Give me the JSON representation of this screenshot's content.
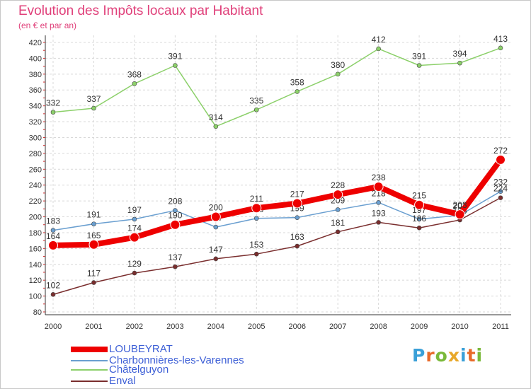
{
  "header": {
    "title": "Evolution des Impôts locaux par Habitant",
    "subtitle": "(en € et par an)"
  },
  "logo": {
    "text": "Proxiti",
    "letters": [
      {
        "ch": "P",
        "color": "#3aa0d8"
      },
      {
        "ch": "r",
        "color": "#e86a2a"
      },
      {
        "ch": "o",
        "color": "#7ab93a"
      },
      {
        "ch": "x",
        "color": "#e8a82a"
      },
      {
        "ch": "i",
        "color": "#3aa0d8"
      },
      {
        "ch": "t",
        "color": "#e86a2a"
      },
      {
        "ch": "i",
        "color": "#7ab93a"
      }
    ]
  },
  "chart_data": {
    "type": "line",
    "title": "Evolution des Impôts locaux par Habitant",
    "subtitle": "(en € et par an)",
    "xlabel": "",
    "ylabel": "",
    "ylim": [
      80,
      420
    ],
    "grid": true,
    "y_ticks": [
      80,
      100,
      120,
      140,
      160,
      180,
      200,
      220,
      240,
      260,
      280,
      300,
      320,
      340,
      360,
      380,
      400,
      420
    ],
    "categories": [
      "2000",
      "2001",
      "2002",
      "2003",
      "2004",
      "2005",
      "2006",
      "2007",
      "2008",
      "2009",
      "2010",
      "2011"
    ],
    "legend_position": "bottom-left",
    "series": [
      {
        "name": "LOUBEYRAT",
        "color": "#ee0000",
        "bold": true,
        "values": [
          164,
          165,
          174,
          190,
          200,
          211,
          217,
          228,
          238,
          215,
          203,
          272
        ],
        "labels": [
          "164",
          "165",
          "174",
          "190",
          "200",
          "211",
          "217",
          "228",
          "238",
          "215",
          "203",
          "272"
        ]
      },
      {
        "name": "Charbonnières-les-Varennes",
        "color": "#6a9fd0",
        "bold": false,
        "values": [
          183,
          191,
          197,
          208,
          187,
          198,
          199,
          209,
          218,
          197,
          202,
          232
        ],
        "labels": [
          "183",
          "191",
          "197",
          "208",
          "187",
          "198",
          "199",
          "209",
          "218",
          "197",
          "202",
          "232"
        ]
      },
      {
        "name": "Châtelguyon",
        "color": "#8cd06a",
        "bold": false,
        "values": [
          332,
          337,
          368,
          391,
          314,
          335,
          358,
          380,
          412,
          391,
          394,
          413
        ],
        "labels": [
          "332",
          "337",
          "368",
          "391",
          "314",
          "335",
          "358",
          "380",
          "412",
          "391",
          "394",
          "413"
        ]
      },
      {
        "name": "Enval",
        "color": "#7a2e2e",
        "bold": false,
        "values": [
          102,
          117,
          129,
          137,
          147,
          153,
          163,
          181,
          193,
          186,
          196,
          224
        ],
        "labels": [
          "102",
          "117",
          "129",
          "137",
          "147",
          "153",
          "163",
          "181",
          "193",
          "186",
          "196",
          "224"
        ]
      }
    ]
  }
}
